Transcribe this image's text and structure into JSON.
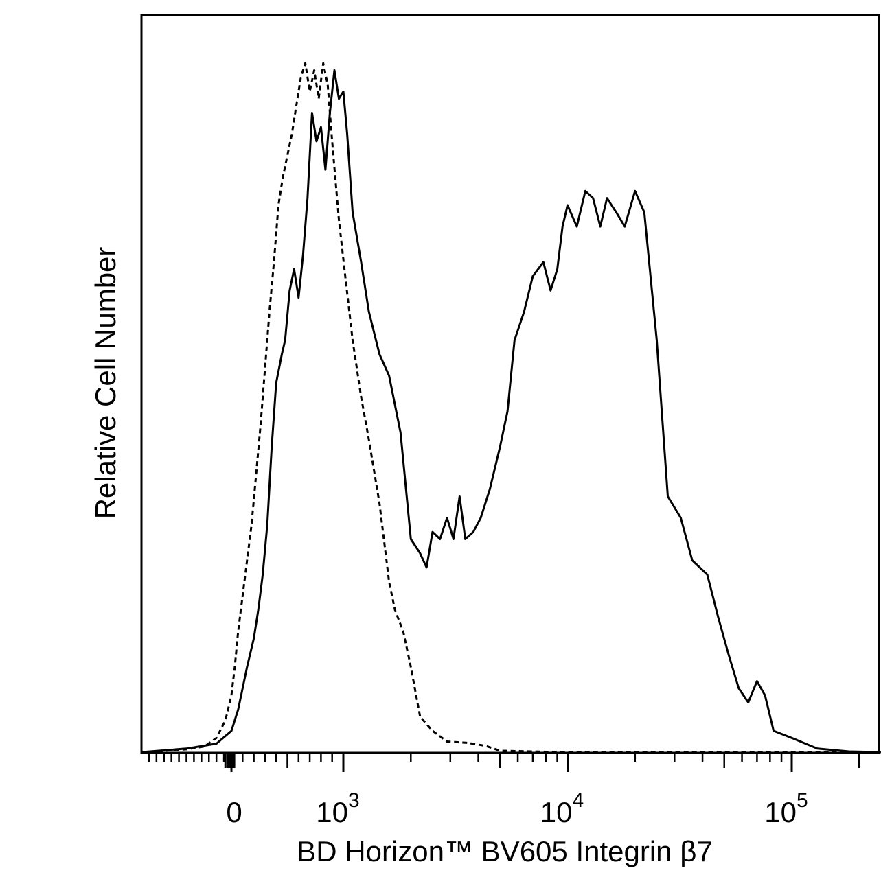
{
  "chart_data": {
    "type": "line",
    "title": "",
    "xlabel": "BD Horizon™ BV605 Integrin β7",
    "ylabel": "Relative Cell Number",
    "x_scale": "biexponential",
    "xlim": [
      -600,
      250000
    ],
    "ylim": [
      0,
      100
    ],
    "grid": false,
    "legend": "none",
    "x_ticks": [
      {
        "value": 0,
        "base": "0",
        "exp": ""
      },
      {
        "value": 1000,
        "base": "10",
        "exp": "3"
      },
      {
        "value": 10000,
        "base": "10",
        "exp": "4"
      },
      {
        "value": 100000,
        "base": "10",
        "exp": "5"
      }
    ],
    "series": [
      {
        "style": "dashed",
        "color": "#000000",
        "points": [
          [
            -600,
            0
          ],
          [
            -300,
            0.4
          ],
          [
            -180,
            0.8
          ],
          [
            -100,
            2
          ],
          [
            -40,
            4.5
          ],
          [
            0,
            8
          ],
          [
            30,
            12
          ],
          [
            60,
            17
          ],
          [
            100,
            22
          ],
          [
            140,
            27
          ],
          [
            180,
            32
          ],
          [
            220,
            39
          ],
          [
            260,
            46
          ],
          [
            300,
            54
          ],
          [
            340,
            62
          ],
          [
            380,
            69
          ],
          [
            420,
            77
          ],
          [
            460,
            81
          ],
          [
            500,
            84
          ],
          [
            540,
            87
          ],
          [
            580,
            91
          ],
          [
            620,
            95
          ],
          [
            660,
            97
          ],
          [
            700,
            93
          ],
          [
            740,
            96
          ],
          [
            780,
            92
          ],
          [
            820,
            97
          ],
          [
            860,
            94
          ],
          [
            900,
            86
          ],
          [
            960,
            75
          ],
          [
            1020,
            67
          ],
          [
            1100,
            58
          ],
          [
            1200,
            50
          ],
          [
            1300,
            44
          ],
          [
            1450,
            35
          ],
          [
            1600,
            24
          ],
          [
            1700,
            20
          ],
          [
            1850,
            17
          ],
          [
            2000,
            12
          ],
          [
            2200,
            5
          ],
          [
            2500,
            3
          ],
          [
            2900,
            1.5
          ],
          [
            3600,
            1.3
          ],
          [
            4300,
            0.9
          ],
          [
            5000,
            0.2
          ],
          [
            8000,
            0.05
          ],
          [
            20000,
            0
          ],
          [
            250000,
            0
          ]
        ]
      },
      {
        "style": "solid",
        "color": "#000000",
        "points": [
          [
            -600,
            0
          ],
          [
            -300,
            0.5
          ],
          [
            -100,
            1.2
          ],
          [
            0,
            3
          ],
          [
            60,
            6
          ],
          [
            100,
            9
          ],
          [
            140,
            12
          ],
          [
            200,
            16
          ],
          [
            240,
            20
          ],
          [
            280,
            25
          ],
          [
            320,
            32
          ],
          [
            360,
            43
          ],
          [
            400,
            52
          ],
          [
            450,
            56
          ],
          [
            480,
            58
          ],
          [
            520,
            65
          ],
          [
            560,
            68
          ],
          [
            600,
            64
          ],
          [
            640,
            70
          ],
          [
            680,
            78
          ],
          [
            720,
            90
          ],
          [
            760,
            86
          ],
          [
            800,
            88
          ],
          [
            840,
            82
          ],
          [
            880,
            90
          ],
          [
            920,
            96
          ],
          [
            960,
            92
          ],
          [
            1000,
            93
          ],
          [
            1040,
            87
          ],
          [
            1100,
            76
          ],
          [
            1200,
            69
          ],
          [
            1300,
            62
          ],
          [
            1450,
            56
          ],
          [
            1600,
            53
          ],
          [
            1800,
            45
          ],
          [
            2000,
            30
          ],
          [
            2200,
            28
          ],
          [
            2350,
            26
          ],
          [
            2500,
            31
          ],
          [
            2700,
            30
          ],
          [
            2900,
            33
          ],
          [
            3100,
            30
          ],
          [
            3300,
            36
          ],
          [
            3500,
            30
          ],
          [
            3800,
            31
          ],
          [
            4100,
            33
          ],
          [
            4500,
            37
          ],
          [
            5000,
            43
          ],
          [
            5400,
            48
          ],
          [
            5800,
            58
          ],
          [
            6400,
            62
          ],
          [
            7000,
            67
          ],
          [
            7800,
            69
          ],
          [
            8400,
            65
          ],
          [
            9000,
            68
          ],
          [
            9500,
            74
          ],
          [
            10000,
            77
          ],
          [
            11000,
            74
          ],
          [
            12000,
            79
          ],
          [
            13000,
            78
          ],
          [
            14000,
            74
          ],
          [
            15000,
            78
          ],
          [
            16500,
            76
          ],
          [
            18000,
            74
          ],
          [
            20000,
            79
          ],
          [
            22000,
            76
          ],
          [
            25000,
            58
          ],
          [
            28000,
            36
          ],
          [
            32000,
            33
          ],
          [
            36000,
            27
          ],
          [
            42000,
            25
          ],
          [
            47000,
            19
          ],
          [
            52000,
            14
          ],
          [
            58000,
            9
          ],
          [
            64000,
            7
          ],
          [
            70000,
            10
          ],
          [
            76000,
            8
          ],
          [
            83000,
            3
          ],
          [
            100000,
            2
          ],
          [
            130000,
            0.5
          ],
          [
            180000,
            0.1
          ],
          [
            250000,
            0
          ]
        ]
      }
    ]
  }
}
